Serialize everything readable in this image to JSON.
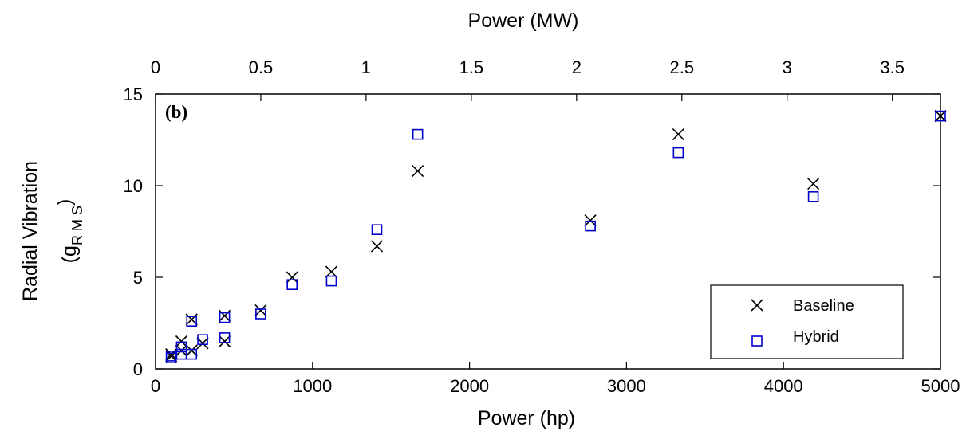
{
  "chart_data": {
    "type": "scatter",
    "panel_label": "(b)",
    "xlabel": "Power (hp)",
    "top_xlabel": "Power (MW)",
    "ylabel": "Radial Vibration",
    "ylabel_unit_prefix": "(g",
    "ylabel_unit_subscript": "R M S",
    "ylabel_unit_suffix": ")",
    "xlim": [
      0,
      5000
    ],
    "ylim": [
      0,
      15
    ],
    "top_xlim_mw": [
      0,
      3.7285
    ],
    "x_ticks": [
      0,
      1000,
      2000,
      3000,
      4000,
      5000
    ],
    "x_tick_labels": [
      "0",
      "1000",
      "2000",
      "3000",
      "4000",
      "5000"
    ],
    "y_ticks": [
      0,
      5,
      10,
      15
    ],
    "y_tick_labels": [
      "0",
      "5",
      "10",
      "15"
    ],
    "top_ticks_mw": [
      0,
      0.5,
      1,
      1.5,
      2,
      2.5,
      3,
      3.5
    ],
    "top_tick_labels": [
      "0",
      "0.5",
      "1",
      "1.5",
      "2",
      "2.5",
      "3",
      "3.5"
    ],
    "grid": false,
    "legend_position": "bottom-right",
    "series": [
      {
        "name": "Baseline",
        "marker": "x",
        "color": "#000000",
        "points": [
          {
            "x": 100,
            "y": 0.7
          },
          {
            "x": 100,
            "y": 0.8
          },
          {
            "x": 165,
            "y": 1.5
          },
          {
            "x": 165,
            "y": 1.0
          },
          {
            "x": 230,
            "y": 2.7
          },
          {
            "x": 230,
            "y": 1.0
          },
          {
            "x": 300,
            "y": 1.4
          },
          {
            "x": 440,
            "y": 2.9
          },
          {
            "x": 440,
            "y": 1.5
          },
          {
            "x": 670,
            "y": 3.2
          },
          {
            "x": 870,
            "y": 5.0
          },
          {
            "x": 1120,
            "y": 5.3
          },
          {
            "x": 1410,
            "y": 6.7
          },
          {
            "x": 1670,
            "y": 10.8
          },
          {
            "x": 2770,
            "y": 8.1
          },
          {
            "x": 3330,
            "y": 12.8
          },
          {
            "x": 4190,
            "y": 10.1
          },
          {
            "x": 5000,
            "y": 13.8
          }
        ]
      },
      {
        "name": "Hybrid",
        "marker": "square",
        "color": "#0000cc",
        "points": [
          {
            "x": 100,
            "y": 0.6
          },
          {
            "x": 100,
            "y": 0.7
          },
          {
            "x": 165,
            "y": 1.2
          },
          {
            "x": 165,
            "y": 0.8
          },
          {
            "x": 230,
            "y": 2.6
          },
          {
            "x": 230,
            "y": 0.8
          },
          {
            "x": 300,
            "y": 1.6
          },
          {
            "x": 440,
            "y": 2.8
          },
          {
            "x": 440,
            "y": 1.7
          },
          {
            "x": 670,
            "y": 3.0
          },
          {
            "x": 870,
            "y": 4.6
          },
          {
            "x": 1120,
            "y": 4.8
          },
          {
            "x": 1410,
            "y": 7.6
          },
          {
            "x": 1670,
            "y": 12.8
          },
          {
            "x": 2770,
            "y": 7.8
          },
          {
            "x": 3330,
            "y": 11.8
          },
          {
            "x": 4190,
            "y": 9.4
          },
          {
            "x": 5000,
            "y": 13.8
          }
        ]
      }
    ]
  }
}
